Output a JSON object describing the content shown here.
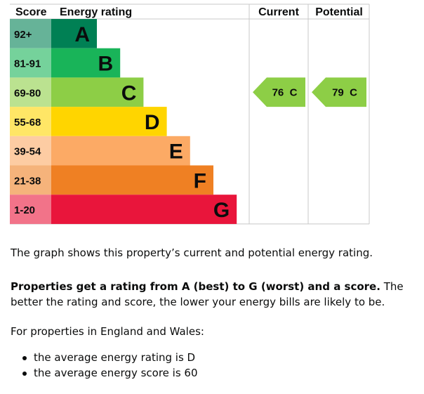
{
  "chart_data": {
    "type": "bar",
    "headers": {
      "score": "Score",
      "rating": "Energy rating",
      "current": "Current",
      "potential": "Potential"
    },
    "bands": [
      {
        "score": "92+",
        "letter": "A",
        "color": "#008054",
        "score_bg": "#66b398"
      },
      {
        "score": "81-91",
        "letter": "B",
        "color": "#19b459",
        "score_bg": "#75d29b"
      },
      {
        "score": "69-80",
        "letter": "C",
        "color": "#8dce46",
        "score_bg": "#bbe290"
      },
      {
        "score": "55-68",
        "letter": "D",
        "color": "#ffd500",
        "score_bg": "#ffe666"
      },
      {
        "score": "39-54",
        "letter": "E",
        "color": "#fcaa65",
        "score_bg": "#fdcca3"
      },
      {
        "score": "21-38",
        "letter": "F",
        "color": "#ef8023",
        "score_bg": "#f5b37b"
      },
      {
        "score": "1-20",
        "letter": "G",
        "color": "#e9153b",
        "score_bg": "#f27389"
      }
    ],
    "current": {
      "value": 76,
      "letter": "C",
      "label": "76  C",
      "color": "#8dce46"
    },
    "potential": {
      "value": 79,
      "letter": "C",
      "label": "79  C",
      "color": "#8dce46"
    }
  },
  "text": {
    "description": "The graph shows this property’s current and potential energy rating.",
    "bold_intro": "Properties get a rating from A (best) to G (worst) and a score.",
    "rest_intro": " The better the rating and score, the lower your energy bills are likely to be.",
    "region": "For properties in England and Wales:",
    "bullets": [
      "the average energy rating is D",
      "the average energy score is 60"
    ]
  }
}
